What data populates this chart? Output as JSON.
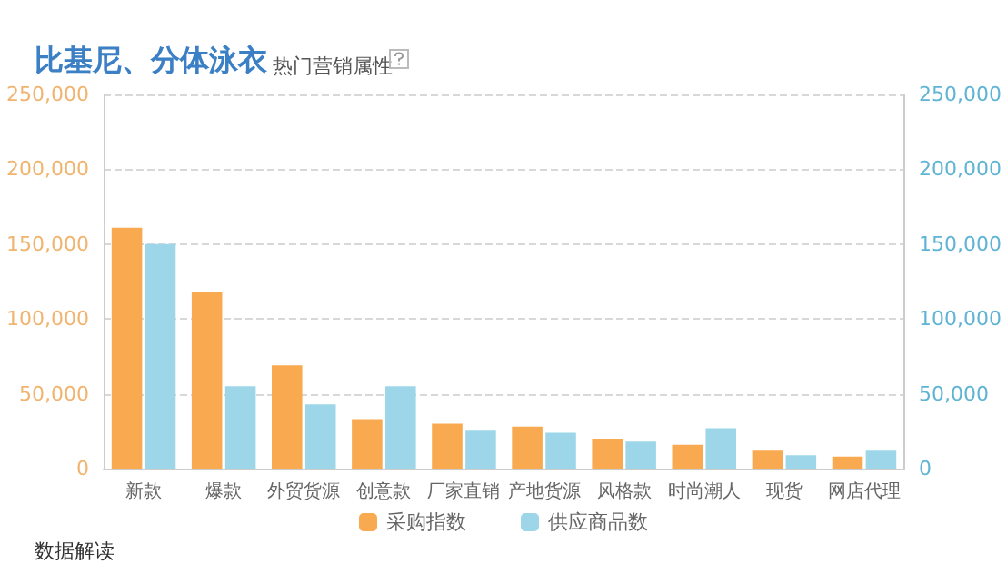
{
  "chart_data": {
    "type": "bar",
    "title": "比基尼、分体泳衣",
    "subtitle": "热门营销属性",
    "categories": [
      "新款",
      "爆款",
      "外贸货源",
      "创意款",
      "厂家直销",
      "产地货源",
      "风格款",
      "时尚潮人",
      "现货",
      "网店代理"
    ],
    "series": [
      {
        "name": "采购指数",
        "color": "#f9a94f",
        "values": [
          161000,
          118000,
          69000,
          33000,
          30000,
          28000,
          20000,
          16000,
          12000,
          8000
        ]
      },
      {
        "name": "供应商品数",
        "color": "#9dd6e8",
        "axis": "y2",
        "values": [
          150000,
          55000,
          43000,
          55000,
          26000,
          24000,
          18000,
          27000,
          9000,
          12000
        ]
      }
    ],
    "ylim": [
      0,
      250000
    ],
    "yticks": [
      0,
      {
        "value": 50000,
        "label": "50,000"
      },
      {
        "value": 100000,
        "label": "100,000"
      },
      {
        "value": 150000,
        "label": "150,000"
      },
      {
        "value": 200000,
        "label": "200,000"
      },
      {
        "value": 250000,
        "label": "250,000"
      }
    ],
    "y2lim": [
      0,
      250000
    ],
    "y2ticks": [
      0,
      {
        "value": 50000,
        "label": "50,000"
      },
      {
        "value": 100000,
        "label": "100,000"
      },
      {
        "value": 150000,
        "label": "150,000"
      },
      {
        "value": 200000,
        "label": "200,000"
      },
      {
        "value": 250000,
        "label": "250,000"
      }
    ],
    "grid": "y",
    "legend": "bottom",
    "annotations": [
      "数据解读"
    ]
  }
}
